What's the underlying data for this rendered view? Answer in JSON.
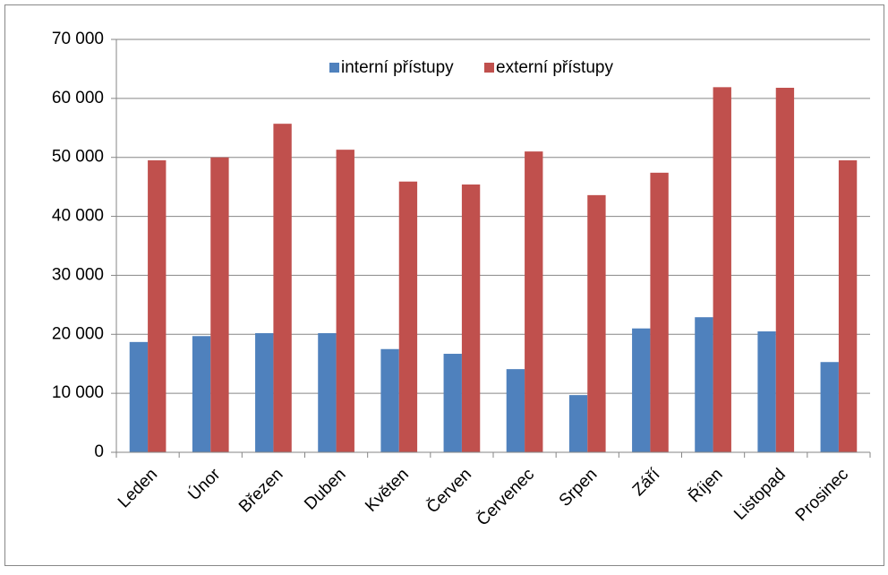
{
  "chart_data": {
    "type": "bar",
    "categories": [
      "Leden",
      "Únor",
      "Březen",
      "Duben",
      "Květen",
      "Červen",
      "Červenec",
      "Srpen",
      "Září",
      "Říjen",
      "Listopad",
      "Prosinec"
    ],
    "series": [
      {
        "name": "interní přístupy",
        "color": "#4f81bd",
        "values": [
          18700,
          19700,
          20200,
          20200,
          17500,
          16700,
          14100,
          9700,
          21000,
          22900,
          20500,
          15300
        ]
      },
      {
        "name": "externí přístupy",
        "color": "#c0504d",
        "values": [
          49500,
          50000,
          55700,
          51300,
          45900,
          45400,
          51000,
          43600,
          47400,
          61900,
          61800,
          49500
        ]
      }
    ],
    "ylim": [
      0,
      70000
    ],
    "yticks": [
      0,
      {
        "value": 10000,
        "label": "10 000"
      },
      {
        "value": 20000,
        "label": "20 000"
      },
      {
        "value": 30000,
        "label": "30 000"
      },
      {
        "value": 40000,
        "label": "40 000"
      },
      {
        "value": 50000,
        "label": "50 000"
      },
      {
        "value": 60000,
        "label": "60 000"
      },
      {
        "value": 70000,
        "label": "70 000"
      }
    ],
    "grid": true,
    "legend": "top"
  }
}
